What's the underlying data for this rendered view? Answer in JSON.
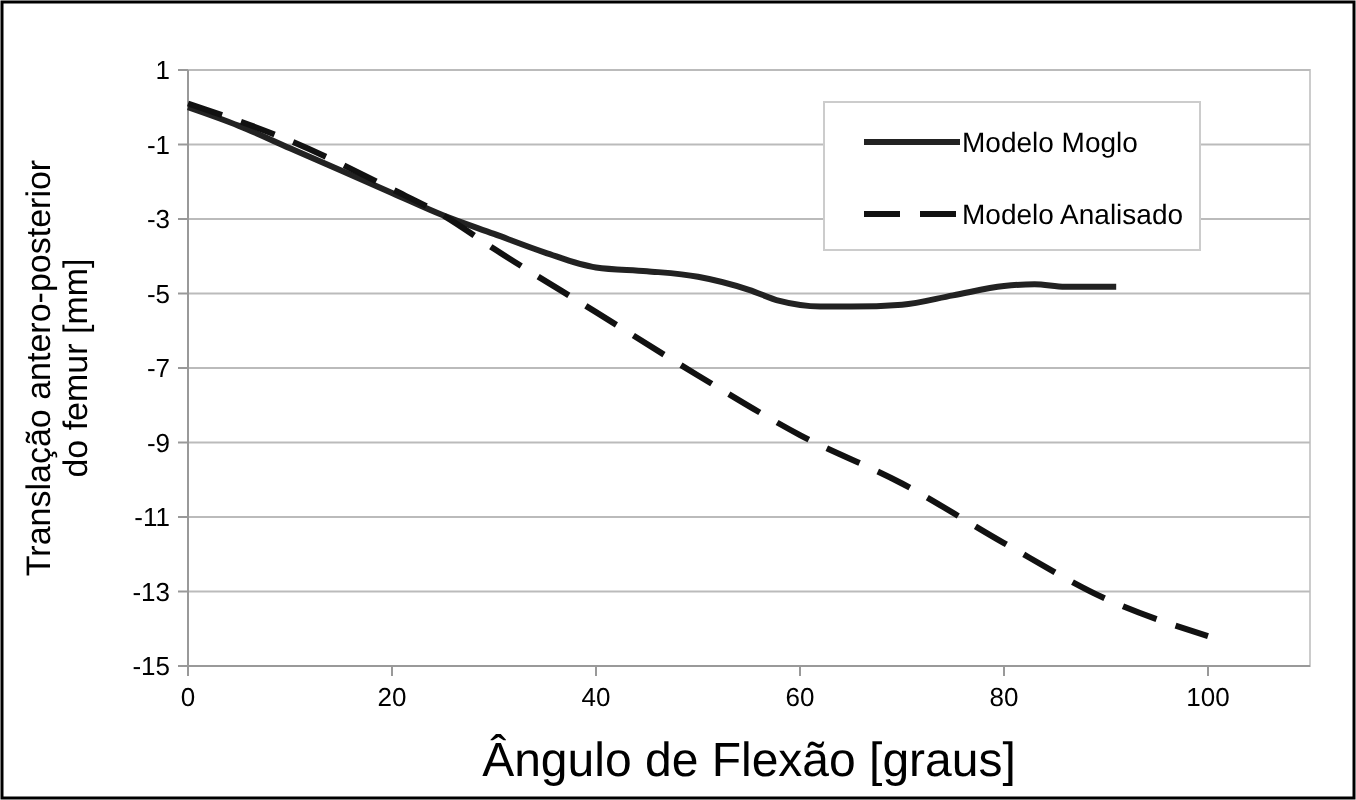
{
  "chart_data": {
    "type": "line",
    "xlabel": "Ângulo de Flexão [graus]",
    "ylabel": "Translação antero-posterior do femur [mm]",
    "xlim": [
      0,
      110
    ],
    "xticks": [
      0,
      20,
      40,
      60,
      80,
      100
    ],
    "ylim": [
      -15,
      1
    ],
    "yticks": [
      -15,
      -13,
      -11,
      -9,
      -7,
      -5,
      -3,
      -1,
      1
    ],
    "grid": "y",
    "legend": "top right",
    "series": [
      {
        "name": "Modelo Moglo",
        "color": "#222222",
        "line_style": "solid",
        "x": [
          0,
          5,
          10,
          15,
          20,
          25,
          30,
          35,
          40,
          45,
          50,
          55,
          58,
          62,
          65,
          70,
          75,
          80,
          83,
          86,
          91
        ],
        "values": [
          0,
          -0.5,
          -1.1,
          -1.7,
          -2.3,
          -2.9,
          -3.4,
          -3.9,
          -4.3,
          -4.4,
          -4.55,
          -4.9,
          -5.2,
          -5.35,
          -5.35,
          -5.3,
          -5.05,
          -4.8,
          -4.75,
          -4.82,
          -4.82
        ]
      },
      {
        "name": "Modelo Analisado",
        "color": "#111111",
        "line_style": "dashed",
        "x": [
          0,
          10,
          20,
          25,
          30,
          40,
          50,
          60,
          70,
          80,
          90,
          100
        ],
        "values": [
          0.1,
          -0.9,
          -2.2,
          -2.9,
          -3.8,
          -5.5,
          -7.2,
          -8.8,
          -10.1,
          -11.7,
          -13.2,
          -14.2
        ]
      }
    ]
  }
}
